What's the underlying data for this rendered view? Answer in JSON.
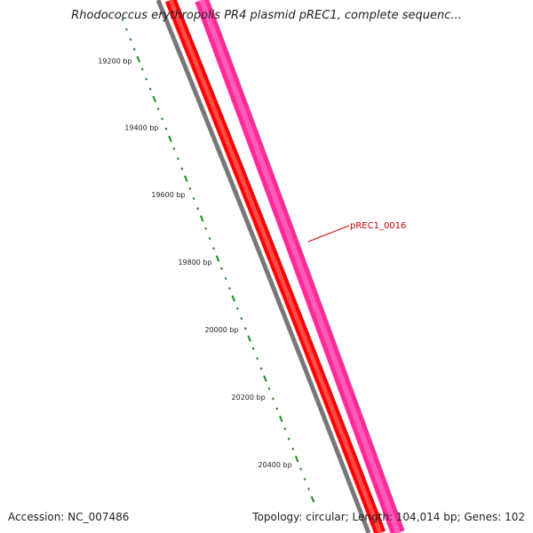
{
  "title": "Rhodococcus erythropolis PR4 plasmid pREC1, complete sequenc...",
  "accession": "Accession: NC_007486",
  "summary": "Topology: circular; Length: 104,014 bp; Genes: 102",
  "ruler": {
    "labels": [
      "19200 bp",
      "19400 bp",
      "19600 bp",
      "19800 bp",
      "20000 bp",
      "20200 bp",
      "20400 bp"
    ],
    "color": "#1a8a1a"
  },
  "feature": {
    "label": "pREC1_0016",
    "label_color": "#cc0000"
  },
  "tracks": [
    {
      "name": "gc-skew",
      "color": "#777777"
    },
    {
      "name": "reverse-strand-genes",
      "color": "#ff0000"
    },
    {
      "name": "forward-strand-genes",
      "color": "#ff2a9a"
    }
  ]
}
